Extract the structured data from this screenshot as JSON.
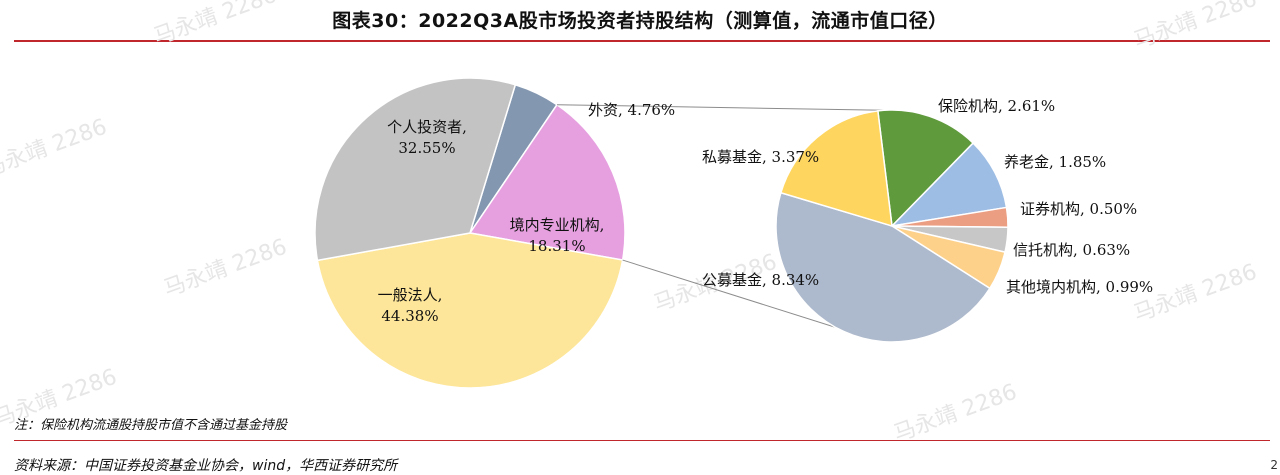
{
  "header": {
    "title": "图表30：2022Q3A股市场投资者持股结构（测算值，流通市值口径）"
  },
  "footer": {
    "note": "注：保险机构流通股持股市值不含通过基金持股",
    "source": "资料来源：中国证券投资基金业协会，wind，华西证券研究所",
    "page": "2"
  },
  "watermark": "马永靖 2286",
  "chart_data": [
    {
      "type": "pie",
      "slices": [
        {
          "name": "外资",
          "value": 4.76,
          "label": "外资, 4.76%",
          "color": "#8497b0"
        },
        {
          "name": "境内专业机构",
          "value": 18.31,
          "label_lines": [
            "境内专业机构,",
            "18.31%"
          ],
          "color": "#e6a0e0"
        },
        {
          "name": "一般法人",
          "value": 44.38,
          "label_lines": [
            "一般法人,",
            "44.38%"
          ],
          "color": "#fde699"
        },
        {
          "name": "个人投资者",
          "value": 32.55,
          "label_lines": [
            "个人投资者,",
            "32.55%"
          ],
          "color": "#c3c3c3"
        }
      ]
    },
    {
      "type": "pie",
      "slices": [
        {
          "name": "保险机构",
          "value": 2.61,
          "label": "保险机构, 2.61%",
          "color": "#5f9a3c"
        },
        {
          "name": "养老金",
          "value": 1.85,
          "label": "养老金, 1.85%",
          "color": "#9ebde4"
        },
        {
          "name": "证券机构",
          "value": 0.5,
          "label": "证券机构, 0.50%",
          "color": "#ec9e83"
        },
        {
          "name": "信托机构",
          "value": 0.63,
          "label": "信托机构, 0.63%",
          "color": "#c7c7c7"
        },
        {
          "name": "其他境内机构",
          "value": 0.99,
          "label": "其他境内机构, 0.99%",
          "color": "#fed18b"
        },
        {
          "name": "公募基金",
          "value": 8.34,
          "label": "公募基金, 8.34%",
          "color": "#adb9cc"
        },
        {
          "name": "私募基金",
          "value": 3.37,
          "label": "私募基金, 3.37%",
          "color": "#fed55f"
        }
      ]
    }
  ]
}
